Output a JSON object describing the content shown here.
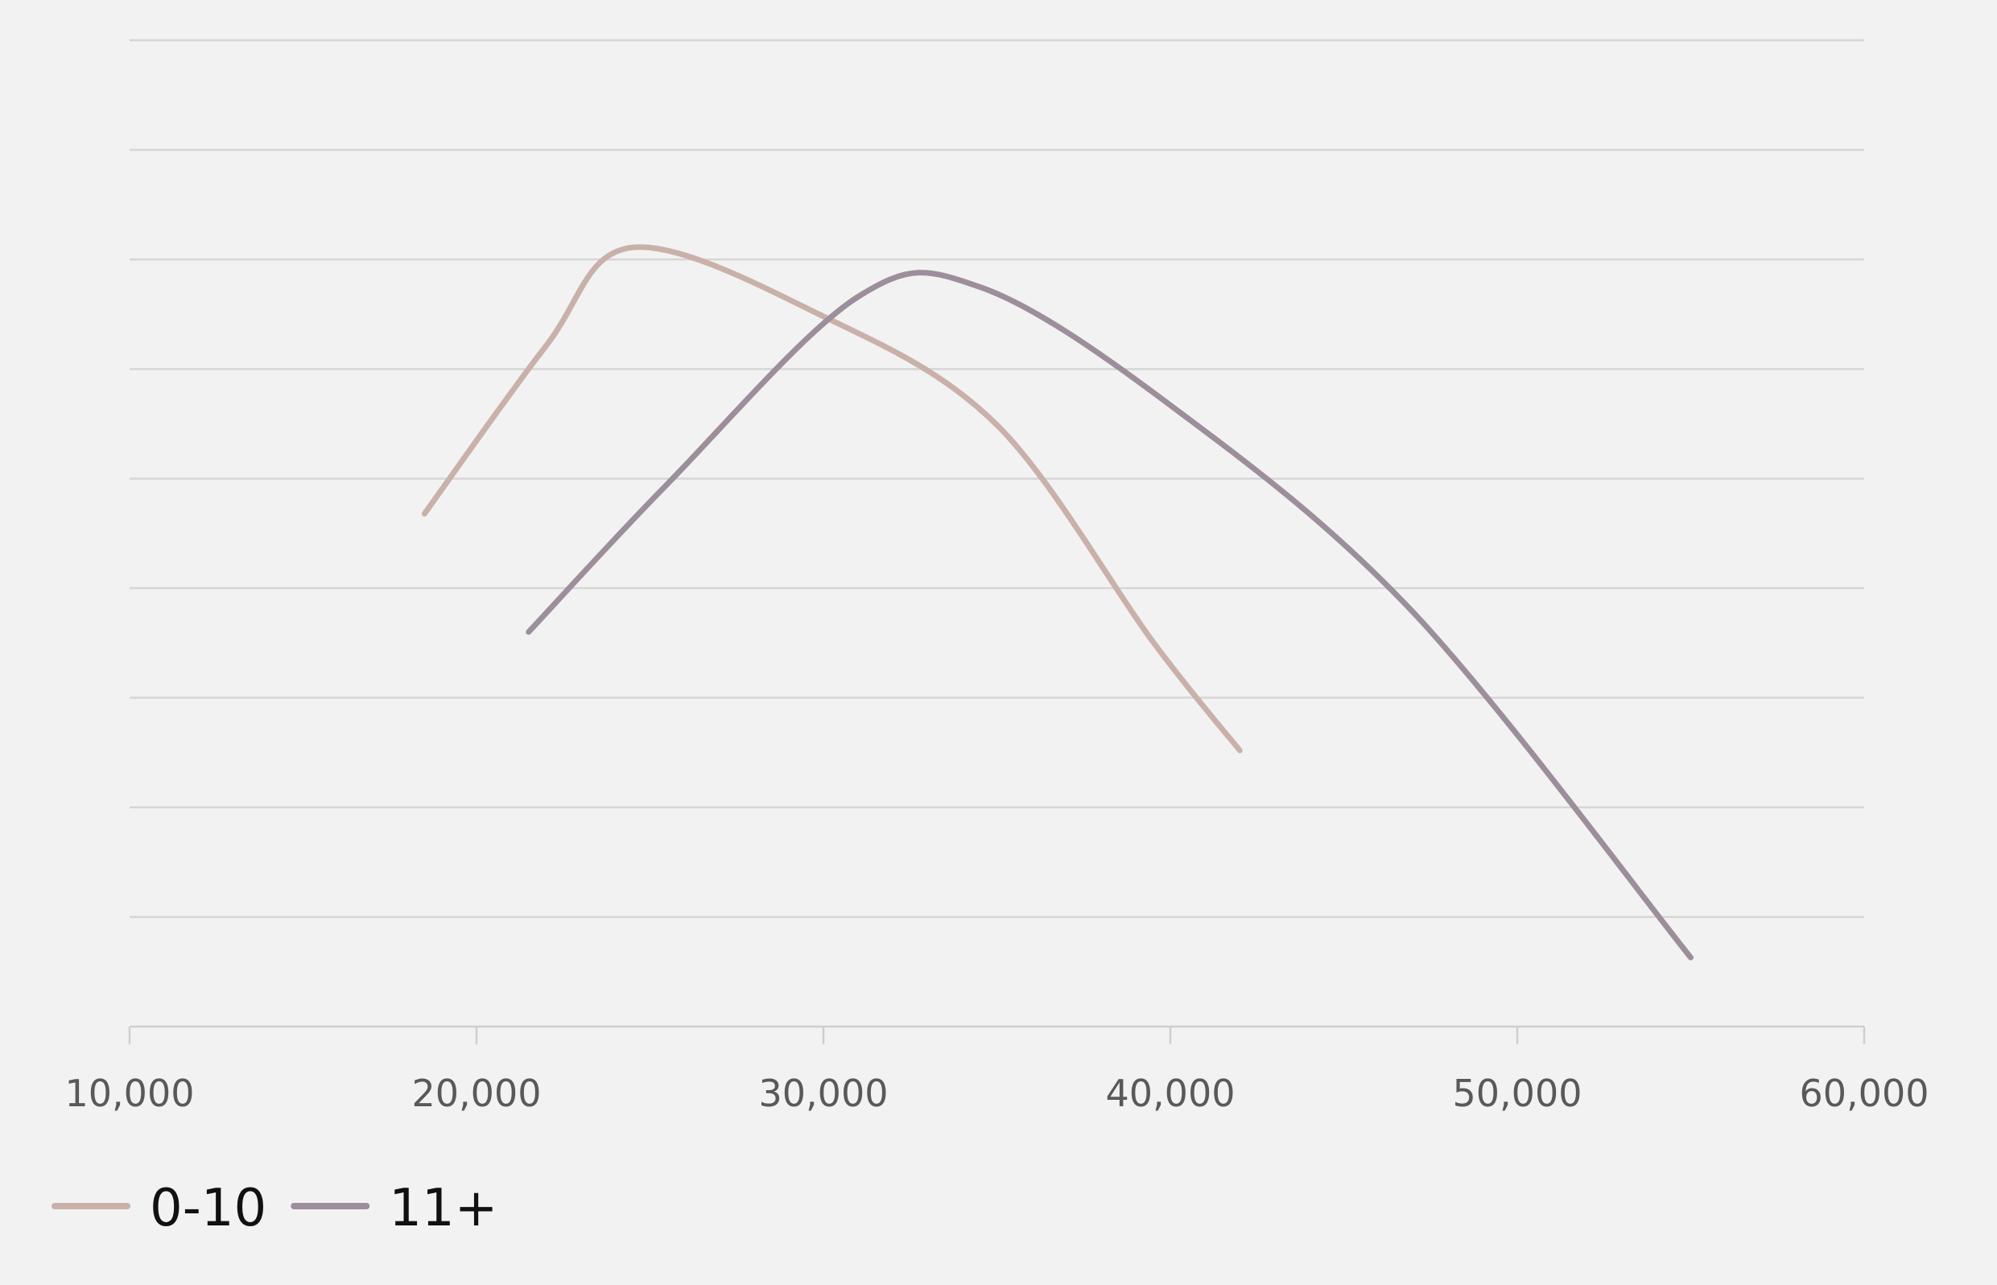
{
  "chart_data": {
    "type": "line",
    "title": "",
    "xlabel": "",
    "ylabel": "",
    "xlim": [
      10000,
      60000
    ],
    "x_ticks": [
      10000,
      20000,
      30000,
      40000,
      50000,
      60000
    ],
    "x_tick_labels": [
      "10,000",
      "20,000",
      "30,000",
      "40,000",
      "50,000",
      "60,000"
    ],
    "y_gridlines": 9,
    "grid": true,
    "y_axis_labels_shown": false,
    "legend": "bottom-left",
    "series": [
      {
        "name": "0-10",
        "color": "#c9b1a9",
        "x": [
          18500,
          22000,
          24500,
          30000,
          35000,
          39500,
          42000
        ],
        "y": [
          0.52,
          0.69,
          0.79,
          0.72,
          0.61,
          0.39,
          0.28
        ]
      },
      {
        "name": "11+",
        "color": "#9d8e9b",
        "x": [
          21500,
          25500,
          31000,
          34500,
          40000,
          47000,
          55000
        ],
        "y": [
          0.4,
          0.55,
          0.74,
          0.75,
          0.63,
          0.42,
          0.07
        ]
      }
    ]
  }
}
